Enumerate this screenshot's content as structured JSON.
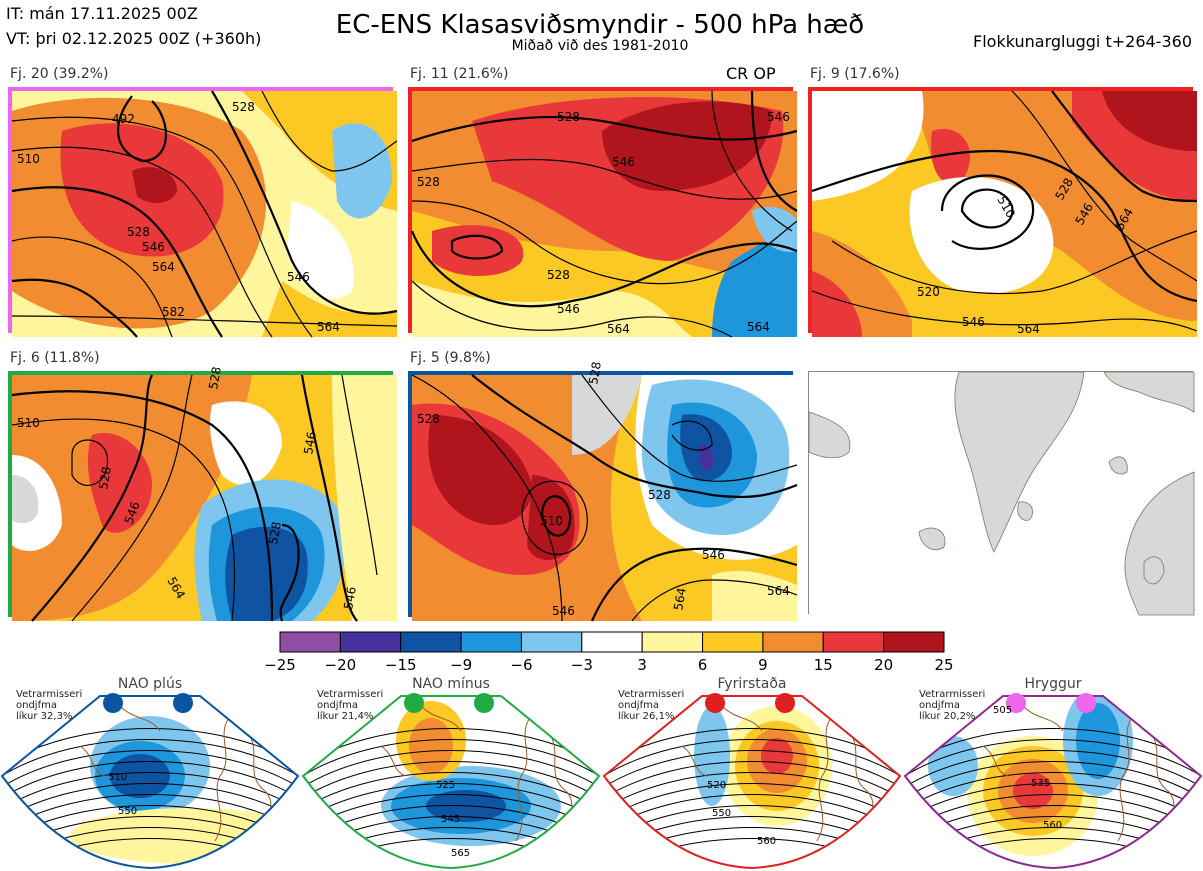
{
  "header": {
    "init_time": "IT: mán 17.11.2025 00Z",
    "valid_time": "VT: þri 02.12.2025 00Z  (+360h)",
    "title": "EC-ENS Klasasviðsmyndir - 500 hPa hæð",
    "subtitle": "Miðað við des 1981-2010",
    "window": "Flokkunargluggi t+264-360"
  },
  "panels": [
    {
      "label": "Fj. 20 (39.2%)",
      "border": "#ee66ee",
      "contours": [
        "492",
        "510",
        "528",
        "528",
        "546",
        "564",
        "582",
        "546",
        "564"
      ]
    },
    {
      "label": "Fj. 11 (21.6%)",
      "border": "#ee2222",
      "tag": "CR OP",
      "contours": [
        "528",
        "528",
        "546",
        "528",
        "546",
        "564",
        "564",
        "546"
      ]
    },
    {
      "label": "Fj. 9 (17.6%)",
      "border": "#ee2222",
      "contours": [
        "510",
        "528",
        "546",
        "564",
        "520",
        "546",
        "564"
      ]
    },
    {
      "label": "Fj. 6 (11.8%)",
      "border": "#22aa44",
      "contours": [
        "510",
        "528",
        "546",
        "564",
        "546",
        "528",
        "528",
        "546"
      ]
    },
    {
      "label": "Fj. 5 (9.8%)",
      "border": "#0a55a0",
      "contours": [
        "528",
        "528",
        "510",
        "528",
        "546",
        "564",
        "546",
        "564"
      ]
    }
  ],
  "colorbar": {
    "ticks": [
      "−25",
      "−20",
      "−15",
      "−9",
      "−6",
      "−3",
      "3",
      "6",
      "9",
      "15",
      "20",
      "25"
    ],
    "colors": [
      "#8e4fa3",
      "#46309a",
      "#0f53a3",
      "#1e96dc",
      "#7fc6ee",
      "#ffffff",
      "#fff59d",
      "#fcc824",
      "#f28c30",
      "#e8383a",
      "#b0141c"
    ]
  },
  "regimes": [
    {
      "name": "NAO plús",
      "prob_line1": "Vetrarmisseri",
      "prob_line2": "ondjfma",
      "prob_line3": "líkur 32,3%",
      "color": "#0a55a0",
      "contours": [
        "510",
        "550"
      ]
    },
    {
      "name": "NAO mínus",
      "prob_line1": "Vetrarmisseri",
      "prob_line2": "ondjfma",
      "prob_line3": "líkur 21,4%",
      "color": "#22aa44",
      "contours": [
        "525",
        "545",
        "565"
      ]
    },
    {
      "name": "Fyrirstaða",
      "prob_line1": "Vetrarmisseri",
      "prob_line2": "ondjfma",
      "prob_line3": "líkur 26,1%",
      "color": "#e02020",
      "contours": [
        "520",
        "550",
        "560"
      ]
    },
    {
      "name": "Hryggur",
      "prob_line1": "Vetrarmisseri",
      "prob_line2": "ondjfma",
      "prob_line3": "líkur 20,2%",
      "color": "#8e2a8e",
      "dot_color": "#ee66ee",
      "contours": [
        "505",
        "535",
        "560"
      ]
    }
  ]
}
